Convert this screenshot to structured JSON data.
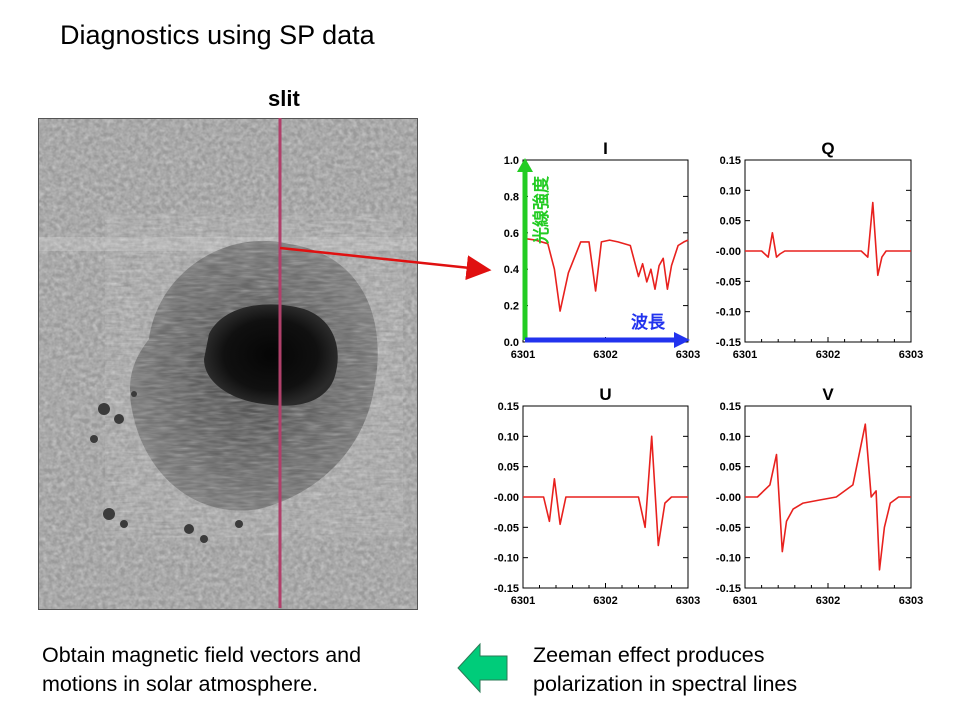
{
  "title": "Diagnostics using SP data",
  "slit_label": "slit",
  "left_caption": [
    "Obtain magnetic field vectors and",
    "motions in solar atmosphere."
  ],
  "right_caption": [
    "Zeeman effect produces",
    "polarization in spectral lines"
  ],
  "colors": {
    "slit": "#b0406a",
    "profile": "#e8211e",
    "intensity_arrow": "#22cc22",
    "wavelength_arrow": "#2233ee",
    "link_arrow": "#e01010",
    "left_arrow": "#00cc7a"
  },
  "chart_data": [
    {
      "type": "line",
      "title": "I",
      "ylim": [
        0.0,
        1.0
      ],
      "yticks": [
        "1.0",
        "0.8",
        "0.6",
        "0.4",
        "0.2",
        "0.0"
      ],
      "xticks": [
        "6301",
        "6302",
        "6303"
      ],
      "ylabel": "光線強度",
      "xlabel": "波長",
      "series": [
        {
          "x": [
            6301.0,
            6301.15,
            6301.3,
            6301.38,
            6301.45,
            6301.55,
            6301.7,
            6301.8,
            6301.88,
            6301.95,
            6302.05,
            6302.15,
            6302.3,
            6302.4,
            6302.45,
            6302.5,
            6302.55,
            6302.6,
            6302.65,
            6302.7,
            6302.75,
            6302.8,
            6302.88,
            6302.95,
            6303.0
          ],
          "y": [
            0.57,
            0.56,
            0.54,
            0.4,
            0.17,
            0.38,
            0.55,
            0.55,
            0.28,
            0.55,
            0.56,
            0.55,
            0.53,
            0.36,
            0.43,
            0.33,
            0.4,
            0.29,
            0.42,
            0.46,
            0.29,
            0.42,
            0.53,
            0.55,
            0.56
          ]
        }
      ]
    },
    {
      "type": "line",
      "title": "Q",
      "ylim": [
        -0.15,
        0.15
      ],
      "yticks": [
        "0.15",
        "0.10",
        "0.05",
        "-0.00",
        "-0.05",
        "-0.10",
        "-0.15"
      ],
      "xticks": [
        "6301",
        "6302",
        "6303"
      ],
      "series": [
        {
          "x": [
            6301.0,
            6301.2,
            6301.28,
            6301.33,
            6301.38,
            6301.42,
            6301.48,
            6301.7,
            6302.1,
            6302.4,
            6302.48,
            6302.54,
            6302.6,
            6302.65,
            6302.7,
            6303.0
          ],
          "y": [
            0.0,
            0.0,
            -0.01,
            0.03,
            -0.01,
            -0.005,
            0.0,
            0.0,
            0.0,
            0.0,
            -0.01,
            0.08,
            -0.04,
            -0.01,
            0.0,
            0.0
          ]
        }
      ]
    },
    {
      "type": "line",
      "title": "U",
      "ylim": [
        -0.15,
        0.15
      ],
      "yticks": [
        "0.15",
        "0.10",
        "0.05",
        "-0.00",
        "-0.05",
        "-0.10",
        "-0.15"
      ],
      "xticks": [
        "6301",
        "6302",
        "6303"
      ],
      "series": [
        {
          "x": [
            6301.0,
            6301.25,
            6301.32,
            6301.38,
            6301.45,
            6301.52,
            6301.6,
            6301.9,
            6302.3,
            6302.4,
            6302.48,
            6302.56,
            6302.64,
            6302.72,
            6302.8,
            6303.0
          ],
          "y": [
            0.0,
            0.0,
            -0.04,
            0.03,
            -0.045,
            0.0,
            0.0,
            0.0,
            0.0,
            0.0,
            -0.05,
            0.1,
            -0.08,
            -0.01,
            0.0,
            0.0
          ]
        }
      ]
    },
    {
      "type": "line",
      "title": "V",
      "ylim": [
        -0.15,
        0.15
      ],
      "yticks": [
        "0.15",
        "0.10",
        "0.05",
        "-0.00",
        "-0.05",
        "-0.10",
        "-0.15"
      ],
      "xticks": [
        "6301",
        "6302",
        "6303"
      ],
      "series": [
        {
          "x": [
            6301.0,
            6301.15,
            6301.3,
            6301.38,
            6301.45,
            6301.5,
            6301.58,
            6301.7,
            6301.9,
            6302.1,
            6302.3,
            6302.45,
            6302.52,
            6302.58,
            6302.62,
            6302.68,
            6302.75,
            6302.85,
            6303.0
          ],
          "y": [
            0.0,
            0.0,
            0.02,
            0.07,
            -0.09,
            -0.04,
            -0.02,
            -0.01,
            -0.005,
            0.0,
            0.02,
            0.12,
            0.0,
            0.01,
            -0.12,
            -0.05,
            -0.01,
            0.0,
            0.0
          ]
        }
      ]
    }
  ]
}
